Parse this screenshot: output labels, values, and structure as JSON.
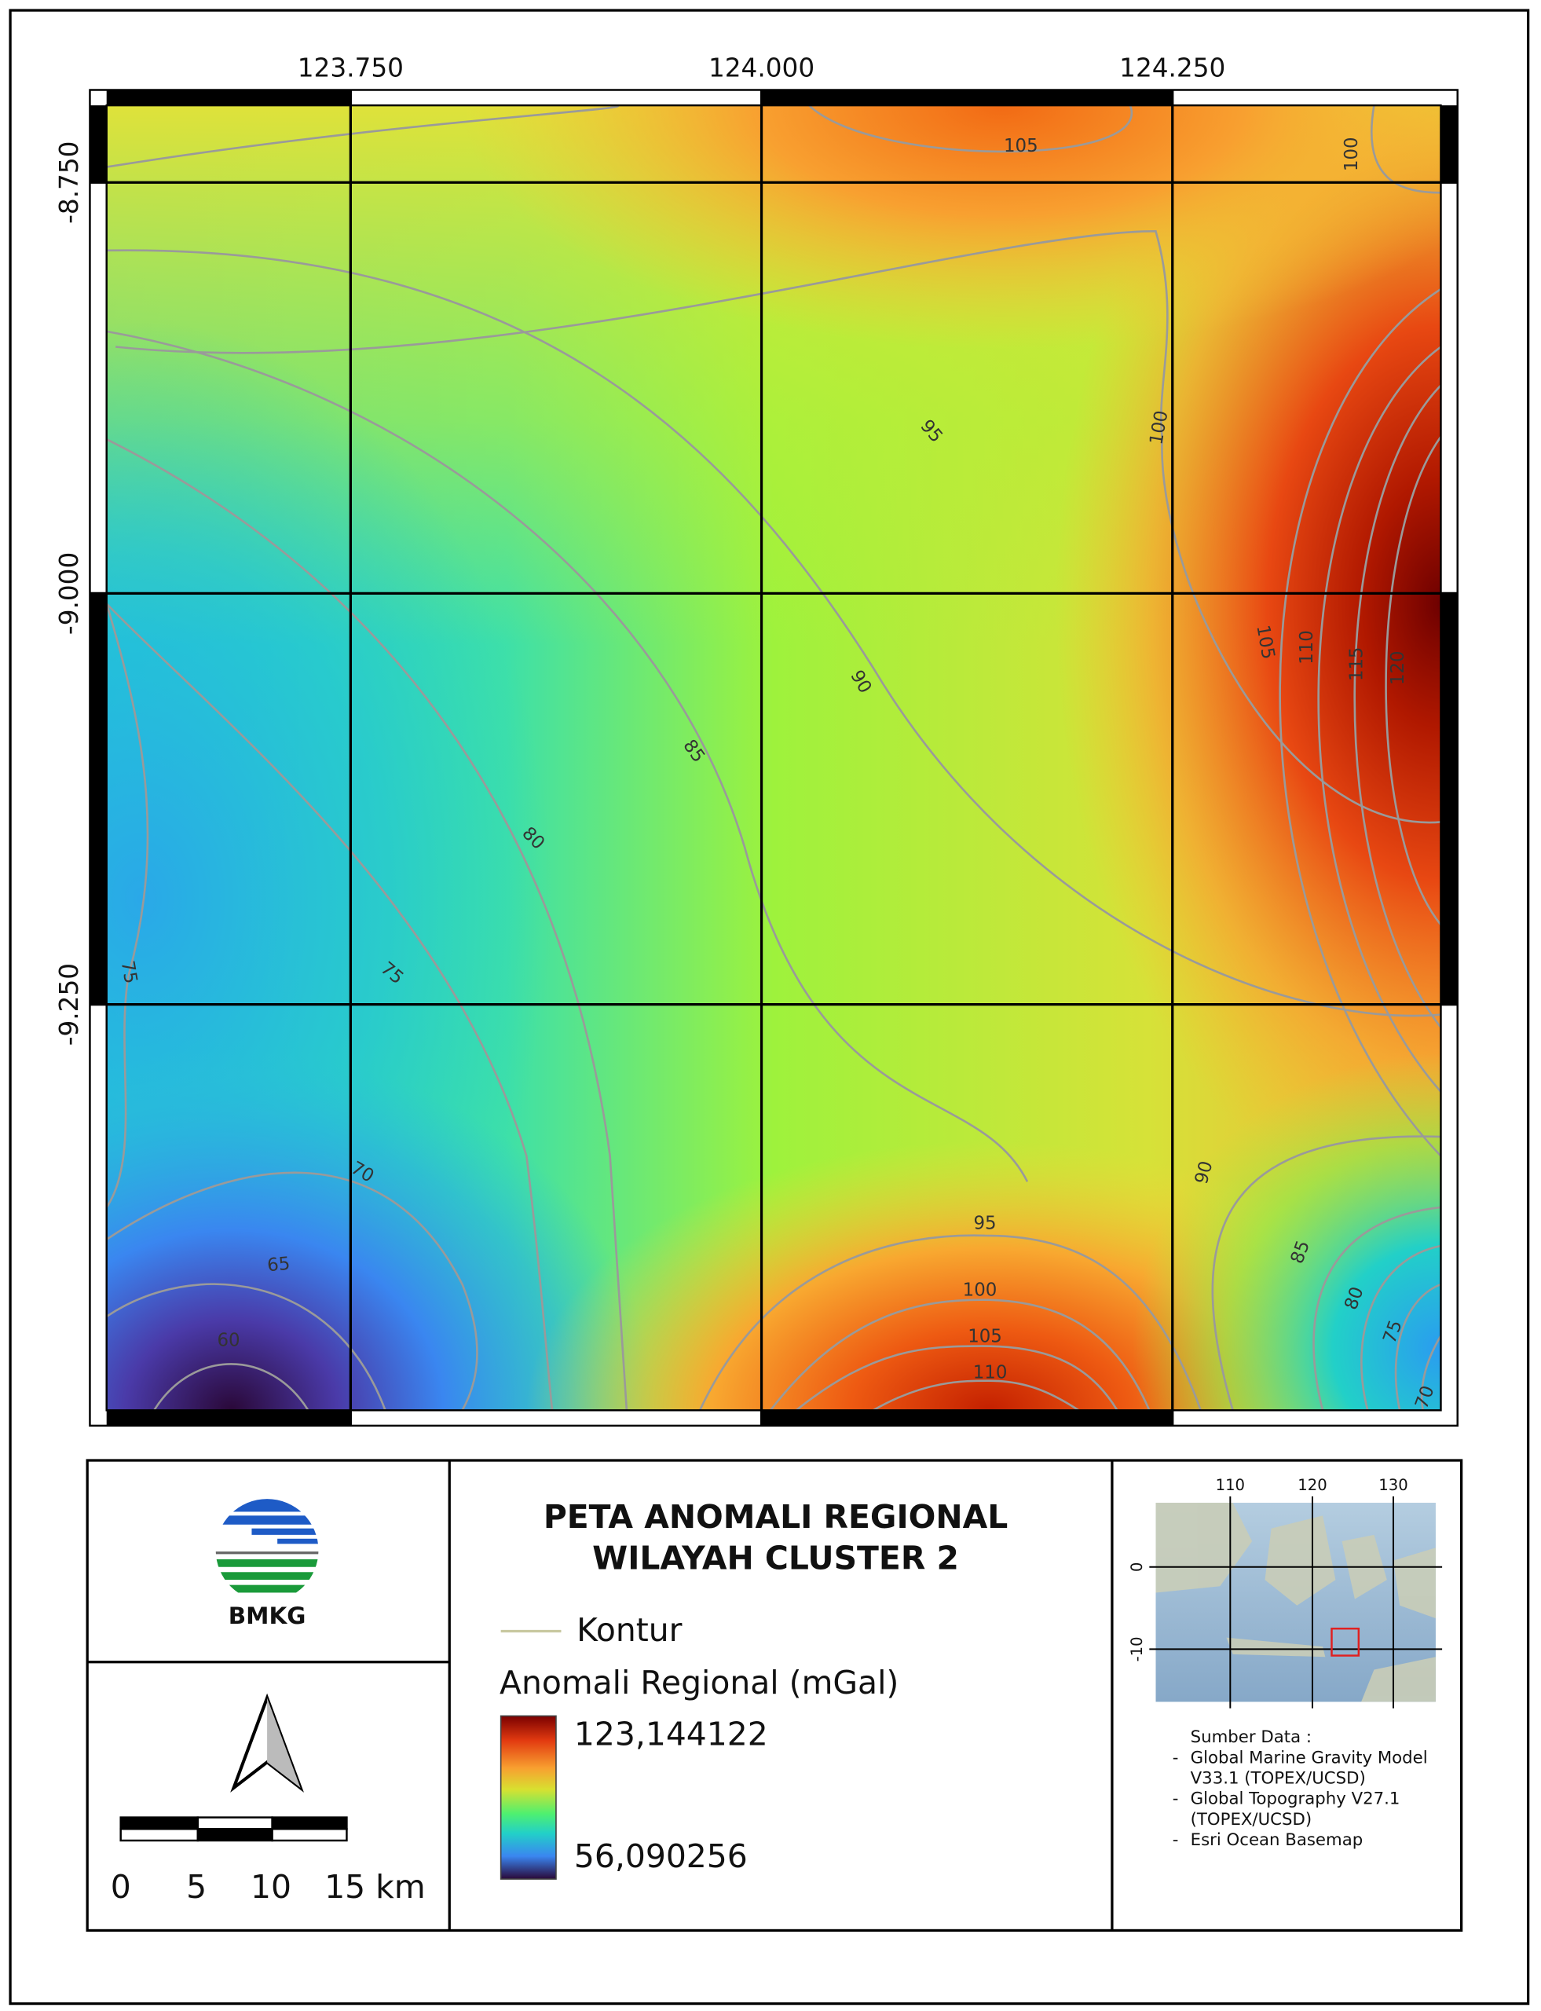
{
  "map": {
    "x_ticks": [
      "123.750",
      "124.000",
      "124.250"
    ],
    "y_ticks": [
      "-8.750",
      "-9.000",
      "-9.250"
    ],
    "contour_labels": [
      "105",
      "100",
      "95",
      "100",
      "90",
      "85",
      "80",
      "75",
      "75",
      "70",
      "65",
      "60",
      "95",
      "100",
      "105",
      "110",
      "90",
      "85",
      "80",
      "75",
      "70",
      "105",
      "110",
      "115",
      "120"
    ]
  },
  "logo": "BMKG",
  "legend": {
    "title": [
      "PETA ANOMALI REGIONAL",
      "WILAYAH CLUSTER 2"
    ],
    "contour": "Kontur",
    "raster_title": "Anomali Regional (mGal)",
    "max": "123,144122",
    "min": "56,090256"
  },
  "scale_bar": [
    "0",
    "5",
    "10",
    "15 km"
  ],
  "inset": {
    "x_ticks": [
      "110",
      "120",
      "130"
    ],
    "y_ticks": [
      "0",
      "-10"
    ]
  },
  "source": {
    "heading": "Sumber Data :",
    "items": [
      [
        "Global Marine Gravity Model",
        "V33.1 (TOPEX/UCSD)"
      ],
      [
        "Global Topography V27.1",
        "(TOPEX/UCSD)"
      ],
      [
        "Esri Ocean Basemap"
      ]
    ]
  }
}
